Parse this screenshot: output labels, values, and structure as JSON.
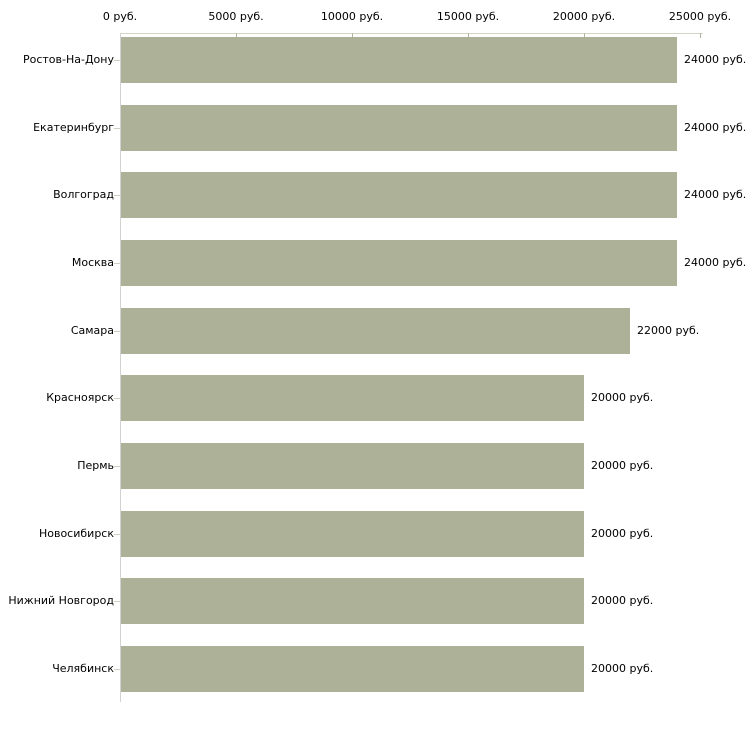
{
  "chart_data": {
    "type": "bar",
    "orientation": "horizontal",
    "categories": [
      "Ростов-На-Дону",
      "Екатеринбург",
      "Волгоград",
      "Москва",
      "Самара",
      "Красноярск",
      "Пермь",
      "Новосибирск",
      "Нижний Новгород",
      "Челябинск"
    ],
    "values": [
      24000,
      24000,
      24000,
      24000,
      22000,
      20000,
      20000,
      20000,
      20000,
      20000
    ],
    "value_labels": [
      "24000 руб.",
      "24000 руб.",
      "24000 руб.",
      "24000 руб.",
      "22000 руб.",
      "20000 руб.",
      "20000 руб.",
      "20000 руб.",
      "20000 руб.",
      "20000 руб."
    ],
    "x_ticks": [
      0,
      5000,
      10000,
      15000,
      20000,
      25000
    ],
    "x_tick_labels": [
      "0 руб.",
      "5000 руб.",
      "10000 руб.",
      "15000 руб.",
      "20000 руб.",
      "25000 руб."
    ],
    "xlim": [
      0,
      25000
    ],
    "unit": "руб.",
    "grid": false,
    "legend": false,
    "colors": {
      "bar_fill": "#acb197",
      "x_axis_line": "#d5d5c5",
      "x_tick_mark": "#b3b39b",
      "y_axis_line": "#d2d2d2",
      "category_tick_mark": "#cfcfc2",
      "text": "#000000",
      "background": "#ffffff"
    }
  }
}
